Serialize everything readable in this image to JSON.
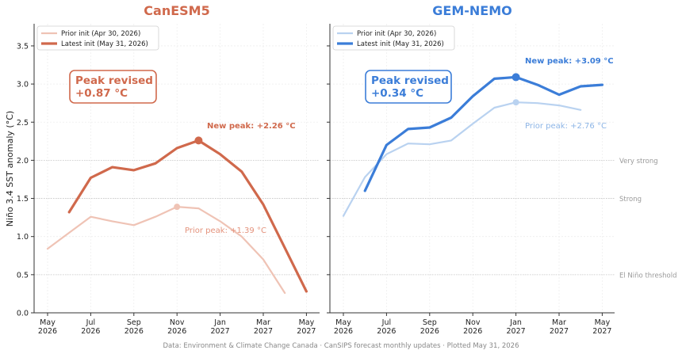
{
  "figure": {
    "ylabel": "Niño 3.4 SST anomaly (°C)",
    "footer": "Data: Environment & Climate Change Canada · CanSIPS forecast monthly updates  ·  Plotted May 31, 2026",
    "threshold_labels": [
      "Very strong",
      "Strong",
      "El Niño threshold"
    ]
  },
  "chart_data": [
    {
      "type": "line",
      "title": "CanESM5",
      "title_color": "#d0694c",
      "xlabel": "",
      "ylabel": "Niño 3.4 SST anomaly (°C)",
      "ylim": [
        0,
        3.8
      ],
      "yticks": [
        "0.0",
        "0.5",
        "1.0",
        "1.5",
        "2.0",
        "2.5",
        "3.0",
        "3.5"
      ],
      "xticks": [
        {
          "l1": "May",
          "l2": "2026"
        },
        {
          "l1": "Jul",
          "l2": "2026"
        },
        {
          "l1": "Sep",
          "l2": "2026"
        },
        {
          "l1": "Nov",
          "l2": "2026"
        },
        {
          "l1": "Jan",
          "l2": "2027"
        },
        {
          "l1": "Mar",
          "l2": "2027"
        },
        {
          "l1": "May",
          "l2": "2027"
        }
      ],
      "reference_lines": [
        0.5,
        1.5,
        2.0
      ],
      "legend": [
        "Prior init (Apr 30, 2026)",
        "Latest init (May 31, 2026)"
      ],
      "legend_position": "upper-left",
      "series": [
        {
          "name": "Prior init (Apr 30, 2026)",
          "color": "#efc3b5",
          "x_months": [
            0,
            1,
            2,
            3,
            4,
            5,
            6,
            7,
            8,
            9,
            10,
            11
          ],
          "values": [
            0.84,
            1.05,
            1.26,
            1.2,
            1.15,
            1.26,
            1.39,
            1.37,
            1.2,
            1.0,
            0.7,
            0.26
          ]
        },
        {
          "name": "Latest init (May 31, 2026)",
          "color": "#d0694c",
          "x_months": [
            1,
            2,
            3,
            4,
            5,
            6,
            7,
            8,
            9,
            10,
            11,
            12
          ],
          "values": [
            1.32,
            1.77,
            1.91,
            1.87,
            1.96,
            2.16,
            2.26,
            2.08,
            1.85,
            1.42,
            0.85,
            0.28
          ]
        }
      ],
      "peaks": [
        {
          "series": 0,
          "index": 6,
          "label": "Prior peak: +1.39 °C"
        },
        {
          "series": 1,
          "index": 6,
          "label": "New peak: +2.26 °C"
        }
      ],
      "revision_box": {
        "line1": "Peak revised",
        "line2": "+0.87 °C"
      }
    },
    {
      "type": "line",
      "title": "GEM-NEMO",
      "title_color": "#3b7dd8",
      "xlabel": "",
      "ylabel": "",
      "ylim": [
        0,
        3.8
      ],
      "xticks": [
        {
          "l1": "May",
          "l2": "2026"
        },
        {
          "l1": "Jul",
          "l2": "2026"
        },
        {
          "l1": "Sep",
          "l2": "2026"
        },
        {
          "l1": "Nov",
          "l2": "2026"
        },
        {
          "l1": "Jan",
          "l2": "2027"
        },
        {
          "l1": "Mar",
          "l2": "2027"
        },
        {
          "l1": "May",
          "l2": "2027"
        }
      ],
      "reference_lines": [
        0.5,
        1.5,
        2.0
      ],
      "legend": [
        "Prior init (Apr 30, 2026)",
        "Latest init (May 31, 2026)"
      ],
      "legend_position": "upper-left",
      "series": [
        {
          "name": "Prior init (Apr 30, 2026)",
          "color": "#b9d2f0",
          "x_months": [
            0,
            1,
            2,
            3,
            4,
            5,
            6,
            7,
            8,
            9,
            10,
            11
          ],
          "values": [
            1.27,
            1.78,
            2.08,
            2.22,
            2.21,
            2.26,
            2.48,
            2.69,
            2.76,
            2.75,
            2.72,
            2.66
          ]
        },
        {
          "name": "Latest init (May 31, 2026)",
          "color": "#3b7dd8",
          "x_months": [
            1,
            2,
            3,
            4,
            5,
            6,
            7,
            8,
            9,
            10,
            11,
            12
          ],
          "values": [
            1.6,
            2.2,
            2.41,
            2.43,
            2.56,
            2.84,
            3.07,
            3.09,
            2.99,
            2.86,
            2.97,
            2.99
          ]
        }
      ],
      "peaks": [
        {
          "series": 0,
          "index": 8,
          "label": "Prior peak: +2.76 °C"
        },
        {
          "series": 1,
          "index": 7,
          "label": "New peak: +3.09 °C"
        }
      ],
      "revision_box": {
        "line1": "Peak revised",
        "line2": "+0.34 °C"
      }
    }
  ]
}
